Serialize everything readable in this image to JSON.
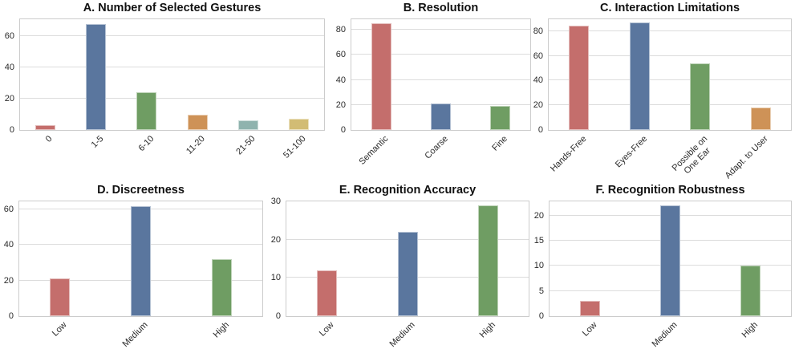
{
  "figure": {
    "description": "Six-panel bar chart figure summarizing gesture survey statistics",
    "background": "#ffffff"
  },
  "colors": {
    "red": "#C46E6C",
    "blue": "#5A769E",
    "green": "#6F9D63",
    "orange": "#CE9257",
    "teal": "#8FB3AE",
    "yellow": "#D2BC74",
    "gridline": "#dcdcdc",
    "spine": "#cccccc",
    "text": "#2b2b2b",
    "title_text": "#111111"
  },
  "chart_data": [
    {
      "type": "bar",
      "title": "A. Number of Selected Gestures",
      "categories": [
        "0",
        "1-5",
        "6-10",
        "11-20",
        "21-50",
        "51-100"
      ],
      "values": [
        3,
        68,
        24,
        10,
        6,
        7
      ],
      "bar_colors": [
        "#C46E6C",
        "#5A769E",
        "#6F9D63",
        "#CE9257",
        "#8FB3AE",
        "#D2BC74"
      ],
      "yticks": [
        0,
        20,
        40,
        60
      ],
      "ylim": [
        0,
        71
      ],
      "xlabel": "",
      "ylabel": "",
      "grid": true,
      "legend": "none",
      "xtick_rotation": 45
    },
    {
      "type": "bar",
      "title": "B. Resolution",
      "categories": [
        "Semantic",
        "Coarse",
        "Fine"
      ],
      "values": [
        85,
        21,
        19
      ],
      "bar_colors": [
        "#C46E6C",
        "#5A769E",
        "#6F9D63"
      ],
      "yticks": [
        0,
        20,
        40,
        60,
        80
      ],
      "ylim": [
        0,
        88.5
      ],
      "xlabel": "",
      "ylabel": "",
      "grid": true,
      "legend": "none",
      "xtick_rotation": 45
    },
    {
      "type": "bar",
      "title": "C. Interaction Limitations",
      "categories": [
        "Hands-Free",
        "Eyes-Free",
        "Possible on\nOne Ear",
        "Adapt. to User"
      ],
      "values": [
        84,
        87,
        54,
        18
      ],
      "bar_colors": [
        "#C46E6C",
        "#5A769E",
        "#6F9D63",
        "#CE9257"
      ],
      "yticks": [
        0,
        20,
        40,
        60,
        80
      ],
      "ylim": [
        0,
        89.5
      ],
      "xlabel": "",
      "ylabel": "",
      "grid": true,
      "legend": "none",
      "xtick_rotation": 45
    },
    {
      "type": "bar",
      "title": "D. Discreetness",
      "categories": [
        "Low",
        "Medium",
        "High"
      ],
      "values": [
        21,
        62,
        32
      ],
      "bar_colors": [
        "#C46E6C",
        "#5A769E",
        "#6F9D63"
      ],
      "yticks": [
        0,
        20,
        40,
        60
      ],
      "ylim": [
        0,
        64.5
      ],
      "xlabel": "",
      "ylabel": "",
      "grid": true,
      "legend": "none",
      "xtick_rotation": 45
    },
    {
      "type": "bar",
      "title": "E. Recognition Accuracy",
      "categories": [
        "Low",
        "Medium",
        "High"
      ],
      "values": [
        12,
        22,
        29
      ],
      "bar_colors": [
        "#C46E6C",
        "#5A769E",
        "#6F9D63"
      ],
      "yticks": [
        0,
        10,
        20,
        30
      ],
      "ylim": [
        0,
        30
      ],
      "xlabel": "",
      "ylabel": "",
      "grid": true,
      "legend": "none",
      "xtick_rotation": 45
    },
    {
      "type": "bar",
      "title": "F. Recognition Robustness",
      "categories": [
        "Low",
        "Medium",
        "High"
      ],
      "values": [
        3,
        22,
        10
      ],
      "bar_colors": [
        "#C46E6C",
        "#5A769E",
        "#6F9D63"
      ],
      "yticks": [
        0,
        5,
        10,
        15,
        20
      ],
      "ylim": [
        0,
        22.8
      ],
      "xlabel": "",
      "ylabel": "",
      "grid": true,
      "legend": "none",
      "xtick_rotation": 45
    }
  ]
}
